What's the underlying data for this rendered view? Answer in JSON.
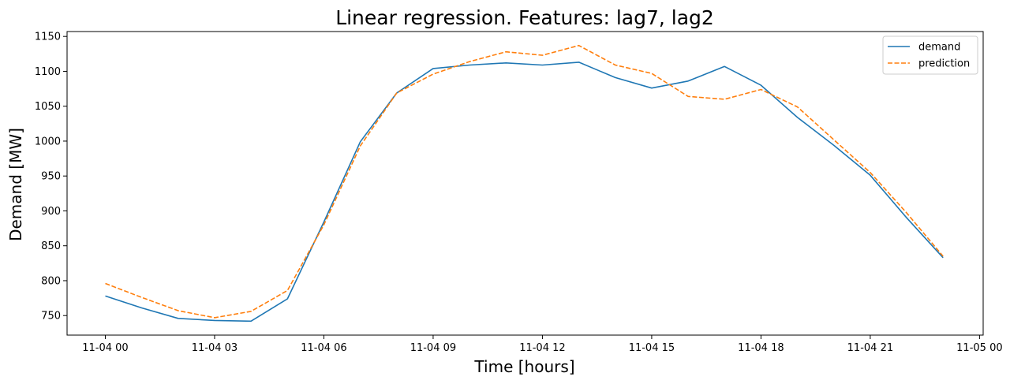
{
  "chart_data": {
    "type": "line",
    "title": "Linear regression. Features: lag7, lag2",
    "xlabel": "Time [hours]",
    "ylabel": "Demand [MW]",
    "x_unit": "hour",
    "x_start": "2000-11-04 00:00",
    "x": [
      0,
      1,
      2,
      3,
      4,
      5,
      6,
      7,
      8,
      9,
      10,
      11,
      12,
      13,
      14,
      15,
      16,
      17,
      18,
      19,
      20,
      21,
      22,
      23
    ],
    "xlim": [
      -1.05,
      24.1
    ],
    "ylim": [
      722,
      1157
    ],
    "x_ticks": [
      {
        "x": 0,
        "label": "11-04 00"
      },
      {
        "x": 3,
        "label": "11-04 03"
      },
      {
        "x": 6,
        "label": "11-04 06"
      },
      {
        "x": 9,
        "label": "11-04 09"
      },
      {
        "x": 12,
        "label": "11-04 12"
      },
      {
        "x": 15,
        "label": "11-04 15"
      },
      {
        "x": 18,
        "label": "11-04 18"
      },
      {
        "x": 21,
        "label": "11-04 21"
      },
      {
        "x": 24,
        "label": "11-05 00"
      }
    ],
    "y_ticks": [
      750,
      800,
      850,
      900,
      950,
      1000,
      1050,
      1100,
      1150
    ],
    "grid": false,
    "legend_position": "top-right",
    "series": [
      {
        "name": "demand",
        "color": "#1f77b4",
        "dash": "solid",
        "values": [
          778,
          761,
          746,
          743,
          742,
          774,
          884,
          999,
          1069,
          1104,
          1109,
          1112,
          1109,
          1113,
          1091,
          1076,
          1086,
          1107,
          1080,
          1034,
          994,
          951,
          890,
          833
        ]
      },
      {
        "name": "prediction",
        "color": "#ff7f0e",
        "dash": "dashed",
        "values": [
          796,
          776,
          757,
          747,
          756,
          786,
          880,
          993,
          1069,
          1096,
          1114,
          1128,
          1123,
          1137,
          1109,
          1097,
          1064,
          1060,
          1074,
          1049,
          1002,
          955,
          897,
          835
        ]
      }
    ]
  }
}
